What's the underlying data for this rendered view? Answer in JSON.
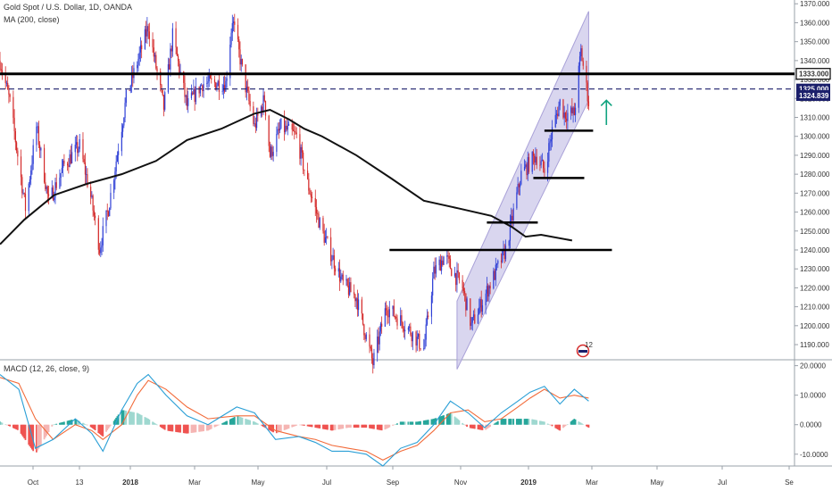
{
  "legend": {
    "title": "Gold Spot / U.S. Dollar, 1D, OANDA",
    "ma": "MA (200, close)",
    "macd": "MACD (12, 26, close, 9)"
  },
  "colors": {
    "up": "#2e3fd6",
    "down": "#d42a2a",
    "ma": "#111111",
    "channel_fill": "#c9c4e8",
    "channel_line": "#a9a1d8",
    "arrow": "#10a37f",
    "macd_line": "#2a9fd6",
    "signal_line": "#f26b3a",
    "hist_up": "#26a69a",
    "hist_up_light": "#9fd8d0",
    "hist_down": "#ef5350",
    "hist_down_light": "#f5b5b3",
    "label_navy": "#1b1f6b"
  },
  "price_axis": {
    "ticks": [
      "1370.000",
      "1360.000",
      "1350.000",
      "1340.000",
      "1330.000",
      "1320.000",
      "1310.000",
      "1300.000",
      "1290.000",
      "1280.000",
      "1270.000",
      "1260.000",
      "1250.000",
      "1240.000",
      "1230.000",
      "1220.000",
      "1210.000",
      "1200.000",
      "1190.000"
    ],
    "labels": [
      {
        "text": "1333.000",
        "value": 1333.0,
        "style": "outline"
      },
      {
        "text": "1325.000",
        "value": 1325.0,
        "style": "navy"
      },
      {
        "text": "1324.839",
        "value": 1324.839,
        "style": "navy"
      }
    ]
  },
  "macd_axis": {
    "ticks": [
      "20.0000",
      "10.0000",
      "0.0000",
      "-10.0000"
    ]
  },
  "time_axis": {
    "labels": [
      "Oct",
      "13",
      "2018",
      "Mar",
      "May",
      "Jul",
      "Sep",
      "Nov",
      "2019",
      "Mar",
      "May",
      "Jul",
      "Se"
    ]
  },
  "event_marker": {
    "count": "12"
  },
  "chart_data": {
    "type": "candlestick",
    "title": "Gold Spot / U.S. Dollar, 1D, OANDA",
    "ylim": [
      1182,
      1372
    ],
    "x_domain": [
      "2017-09-13",
      "2019-09-01"
    ],
    "price_path": [
      [
        "2017-09-13",
        1340
      ],
      [
        "2017-09-22",
        1318
      ],
      [
        "2017-10-06",
        1262
      ],
      [
        "2017-10-16",
        1305
      ],
      [
        "2017-10-27",
        1265
      ],
      [
        "2017-11-10",
        1285
      ],
      [
        "2017-11-24",
        1295
      ],
      [
        "2017-12-04",
        1268
      ],
      [
        "2017-12-12",
        1241
      ],
      [
        "2017-12-20",
        1262
      ],
      [
        "2018-01-05",
        1320
      ],
      [
        "2018-01-25",
        1358
      ],
      [
        "2018-02-08",
        1315
      ],
      [
        "2018-02-16",
        1353
      ],
      [
        "2018-03-01",
        1316
      ],
      [
        "2018-03-15",
        1328
      ],
      [
        "2018-04-05",
        1328
      ],
      [
        "2018-04-11",
        1362
      ],
      [
        "2018-04-23",
        1326
      ],
      [
        "2018-05-01",
        1305
      ],
      [
        "2018-05-10",
        1320
      ],
      [
        "2018-05-15",
        1290
      ],
      [
        "2018-05-25",
        1305
      ],
      [
        "2018-06-08",
        1300
      ],
      [
        "2018-06-18",
        1275
      ],
      [
        "2018-07-01",
        1250
      ],
      [
        "2018-07-20",
        1222
      ],
      [
        "2018-08-01",
        1215
      ],
      [
        "2018-08-16",
        1180
      ],
      [
        "2018-08-28",
        1210
      ],
      [
        "2018-09-15",
        1200
      ],
      [
        "2018-10-01",
        1188
      ],
      [
        "2018-10-10",
        1228
      ],
      [
        "2018-10-20",
        1237
      ],
      [
        "2018-10-26",
        1230
      ],
      [
        "2018-11-05",
        1220
      ],
      [
        "2018-11-13",
        1200
      ],
      [
        "2018-11-30",
        1222
      ],
      [
        "2018-12-14",
        1240
      ],
      [
        "2018-12-28",
        1280
      ],
      [
        "2019-01-10",
        1290
      ],
      [
        "2019-01-18",
        1282
      ],
      [
        "2019-01-25",
        1303
      ],
      [
        "2019-02-01",
        1318
      ],
      [
        "2019-02-05",
        1312
      ],
      [
        "2019-02-14",
        1312
      ],
      [
        "2019-02-20",
        1345
      ],
      [
        "2019-02-27",
        1318
      ]
    ],
    "ma200_path": [
      [
        "2017-09-13",
        1243
      ],
      [
        "2017-10-05",
        1256
      ],
      [
        "2017-11-01",
        1269
      ],
      [
        "2017-12-01",
        1275
      ],
      [
        "2018-01-01",
        1280
      ],
      [
        "2018-02-01",
        1287
      ],
      [
        "2018-03-01",
        1298
      ],
      [
        "2018-04-01",
        1304
      ],
      [
        "2018-05-01",
        1312
      ],
      [
        "2018-05-15",
        1314
      ],
      [
        "2018-06-01",
        1309
      ],
      [
        "2018-06-15",
        1304
      ],
      [
        "2018-07-01",
        1300
      ],
      [
        "2018-08-01",
        1290
      ],
      [
        "2018-09-01",
        1278
      ],
      [
        "2018-10-01",
        1266
      ],
      [
        "2018-11-01",
        1262
      ],
      [
        "2018-12-01",
        1258
      ],
      [
        "2018-12-20",
        1252
      ],
      [
        "2019-01-01",
        1247
      ],
      [
        "2019-01-15",
        1248
      ],
      [
        "2019-02-12",
        1245
      ]
    ],
    "horizontal_levels": [
      {
        "price": 1333.0,
        "from": "2017-09-13",
        "to": "2019-09-01",
        "style": "solid"
      },
      {
        "price": 1325.0,
        "from": "2017-09-13",
        "to": "2019-09-01",
        "style": "dashed"
      },
      {
        "price": 1303.0,
        "from": "2019-01-18",
        "to": "2019-03-03",
        "style": "solid"
      },
      {
        "price": 1278.0,
        "from": "2019-01-08",
        "to": "2019-02-23",
        "style": "solid"
      },
      {
        "price": 1254.5,
        "from": "2018-11-27",
        "to": "2019-01-12",
        "style": "solid"
      },
      {
        "price": 1240.0,
        "from": "2018-08-31",
        "to": "2019-03-20",
        "style": "solid"
      }
    ],
    "channel": {
      "upper": [
        [
          "2018-10-31",
          1213
        ],
        [
          "2019-02-27",
          1366
        ]
      ],
      "lower": [
        [
          "2018-10-31",
          1177
        ],
        [
          "2019-02-27",
          1319
        ]
      ]
    },
    "arrow": {
      "date": "2019-03-15",
      "from_price": 1306,
      "to_price": 1319
    },
    "macd": {
      "ylim": [
        -14,
        22
      ],
      "macd_path": [
        [
          "2017-09-13",
          17
        ],
        [
          "2017-09-30",
          12
        ],
        [
          "2017-10-15",
          -8
        ],
        [
          "2017-10-31",
          -5
        ],
        [
          "2017-11-20",
          2
        ],
        [
          "2017-12-05",
          -3
        ],
        [
          "2017-12-15",
          -9
        ],
        [
          "2018-01-01",
          5
        ],
        [
          "2018-01-15",
          14
        ],
        [
          "2018-01-25",
          17
        ],
        [
          "2018-02-10",
          10
        ],
        [
          "2018-03-01",
          3
        ],
        [
          "2018-03-20",
          0
        ],
        [
          "2018-04-15",
          6
        ],
        [
          "2018-05-01",
          4
        ],
        [
          "2018-05-20",
          -5
        ],
        [
          "2018-06-10",
          -4
        ],
        [
          "2018-06-25",
          -6
        ],
        [
          "2018-07-10",
          -9
        ],
        [
          "2018-07-25",
          -9
        ],
        [
          "2018-08-10",
          -10
        ],
        [
          "2018-08-25",
          -14
        ],
        [
          "2018-09-10",
          -8
        ],
        [
          "2018-09-25",
          -6
        ],
        [
          "2018-10-10",
          0
        ],
        [
          "2018-10-25",
          8
        ],
        [
          "2018-11-10",
          4
        ],
        [
          "2018-11-25",
          -1
        ],
        [
          "2018-12-10",
          4
        ],
        [
          "2018-12-25",
          8
        ],
        [
          "2019-01-05",
          11
        ],
        [
          "2019-01-18",
          13
        ],
        [
          "2019-02-01",
          7
        ],
        [
          "2019-02-14",
          12
        ],
        [
          "2019-02-27",
          8
        ]
      ],
      "signal_path": [
        [
          "2017-09-13",
          16
        ],
        [
          "2017-09-30",
          14
        ],
        [
          "2017-10-15",
          2
        ],
        [
          "2017-10-31",
          -5
        ],
        [
          "2017-11-20",
          0
        ],
        [
          "2017-12-05",
          -2
        ],
        [
          "2017-12-15",
          -5
        ],
        [
          "2018-01-01",
          0
        ],
        [
          "2018-01-15",
          10
        ],
        [
          "2018-01-25",
          15
        ],
        [
          "2018-02-10",
          12
        ],
        [
          "2018-03-01",
          6
        ],
        [
          "2018-03-20",
          2
        ],
        [
          "2018-04-15",
          3
        ],
        [
          "2018-05-01",
          3
        ],
        [
          "2018-05-20",
          -2
        ],
        [
          "2018-06-10",
          -4
        ],
        [
          "2018-06-25",
          -5
        ],
        [
          "2018-07-10",
          -7
        ],
        [
          "2018-07-25",
          -8
        ],
        [
          "2018-08-10",
          -9
        ],
        [
          "2018-08-25",
          -12
        ],
        [
          "2018-09-10",
          -9
        ],
        [
          "2018-09-25",
          -7
        ],
        [
          "2018-10-10",
          -2
        ],
        [
          "2018-10-25",
          4
        ],
        [
          "2018-11-10",
          5
        ],
        [
          "2018-11-25",
          1
        ],
        [
          "2018-12-10",
          2
        ],
        [
          "2018-12-25",
          6
        ],
        [
          "2019-01-05",
          9
        ],
        [
          "2019-01-18",
          12
        ],
        [
          "2019-02-01",
          9
        ],
        [
          "2019-02-14",
          10
        ],
        [
          "2019-02-27",
          9
        ]
      ]
    }
  }
}
